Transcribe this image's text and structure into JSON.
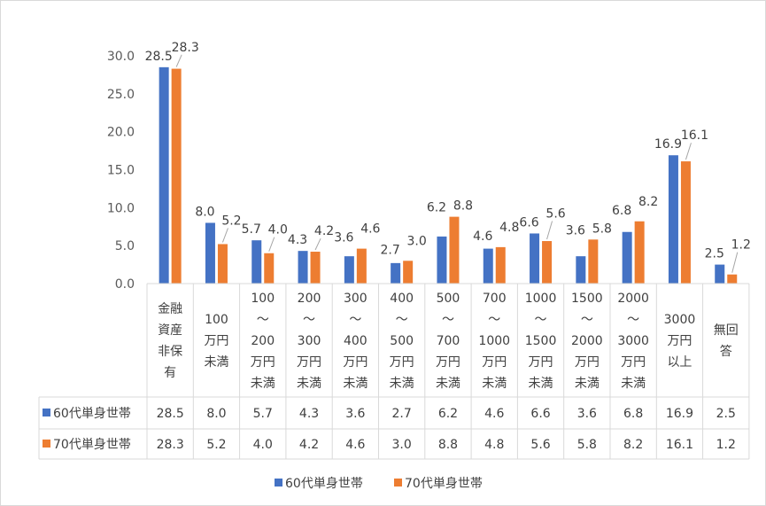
{
  "chart_data": {
    "type": "bar",
    "title": "",
    "xlabel": "",
    "ylabel": "",
    "ylim": [
      0,
      30
    ],
    "yticks": [
      "0.0",
      "5.0",
      "10.0",
      "15.0",
      "20.0",
      "25.0",
      "30.0"
    ],
    "grid": false,
    "legend_position": "bottom",
    "data_table": true,
    "categories": [
      "金融資産非保有",
      "100万円未満",
      "100〜200万円未満",
      "200〜300万円未満",
      "300〜400万円未満",
      "400〜500万円未満",
      "500〜700万円未満",
      "700〜1000万円未満",
      "1000〜1500万円未満",
      "1500〜2000万円未満",
      "2000〜3000万円未満",
      "3000万円以上",
      "無回答"
    ],
    "category_lines": [
      [
        "金融",
        "資産",
        "非保",
        "有"
      ],
      [
        "100",
        "万円",
        "未満"
      ],
      [
        "100",
        "〜",
        "200",
        "万円",
        "未満"
      ],
      [
        "200",
        "〜",
        "300",
        "万円",
        "未満"
      ],
      [
        "300",
        "〜",
        "400",
        "万円",
        "未満"
      ],
      [
        "400",
        "〜",
        "500",
        "万円",
        "未満"
      ],
      [
        "500",
        "〜",
        "700",
        "万円",
        "未満"
      ],
      [
        "700",
        "〜",
        "1000",
        "万円",
        "未満"
      ],
      [
        "1000",
        "〜",
        "1500",
        "万円",
        "未満"
      ],
      [
        "1500",
        "〜",
        "2000",
        "万円",
        "未満"
      ],
      [
        "2000",
        "〜",
        "3000",
        "万円",
        "未満"
      ],
      [
        "3000",
        "万円",
        "以上"
      ],
      [
        "無回",
        "答"
      ]
    ],
    "series": [
      {
        "name": "60代単身世帯",
        "color": "#4472c4",
        "values": [
          28.5,
          8.0,
          5.7,
          4.3,
          3.6,
          2.7,
          6.2,
          4.6,
          6.6,
          3.6,
          6.8,
          16.9,
          2.5
        ],
        "labels": [
          "28.5",
          "8.0",
          "5.7",
          "4.3",
          "3.6",
          "2.7",
          "6.2",
          "4.6",
          "6.6",
          "3.6",
          "6.8",
          "16.9",
          "2.5"
        ]
      },
      {
        "name": "70代単身世帯",
        "color": "#ed7d31",
        "values": [
          28.3,
          5.2,
          4.0,
          4.2,
          4.6,
          3.0,
          8.8,
          4.8,
          5.6,
          5.8,
          8.2,
          16.1,
          1.2
        ],
        "labels": [
          "28.3",
          "5.2",
          "4.0",
          "4.2",
          "4.6",
          "3.0",
          "8.8",
          "4.8",
          "5.6",
          "5.8",
          "8.2",
          "16.1",
          "1.2"
        ]
      }
    ]
  }
}
